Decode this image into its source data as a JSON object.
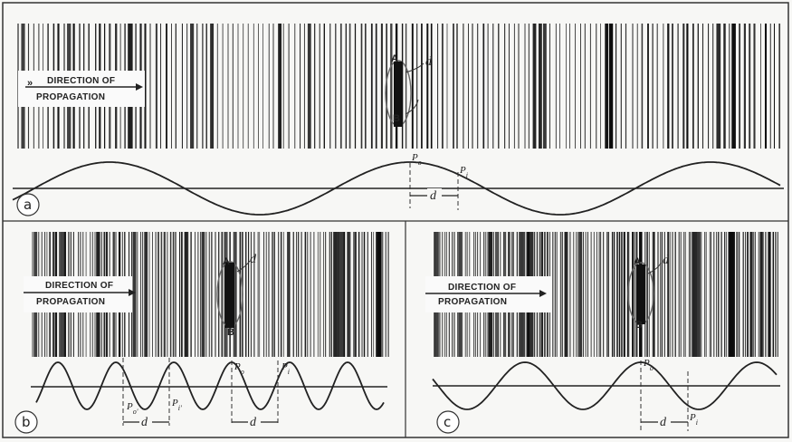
{
  "panels": [
    {
      "id": "a",
      "letter": "a",
      "direction_label_line1": "DIRECTION OF",
      "direction_label_line2": "PROPAGATION",
      "element_top": "A",
      "element_bottom": "B",
      "element_side": "d",
      "point_1": "P",
      "point_1_sub": "o",
      "point_2": "P",
      "point_2_sub": "i",
      "distance": "d"
    },
    {
      "id": "b",
      "letter": "b",
      "direction_label_line1": "DIRECTION OF",
      "direction_label_line2": "PROPAGATION",
      "element_top": "A",
      "element_bottom": "B",
      "element_side": "d",
      "point_1": "P",
      "point_1_sub": "o",
      "point_2": "P",
      "point_2_sub": "i",
      "point_1_prime": "P",
      "point_1_prime_sub": "o'",
      "point_2_prime": "P",
      "point_2_prime_sub": "i'",
      "distance": "d"
    },
    {
      "id": "c",
      "letter": "c",
      "direction_label_line1": "DIRECTION OF",
      "direction_label_line2": "PROPAGATION",
      "element_top": "A",
      "element_bottom": "B",
      "element_side": "d",
      "point_1": "P",
      "point_1_sub": "o",
      "point_2": "P",
      "point_2_sub": "i",
      "distance": "d"
    }
  ]
}
